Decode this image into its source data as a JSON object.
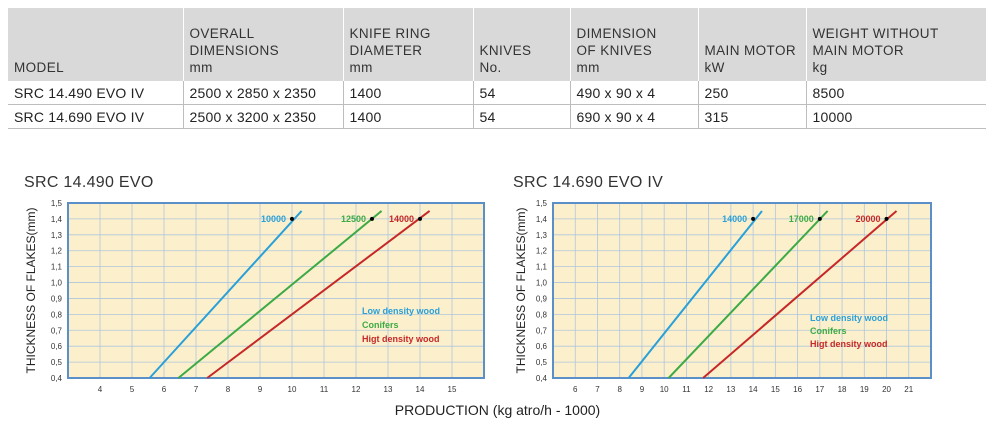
{
  "table": {
    "headers": [
      "MODEL",
      "OVERALL\nDIMENSIONS\nmm",
      "KNIFE RING\nDIAMETER\nmm",
      "KNIVES\nNo.",
      "DIMENSION\nOF KNIVES\nmm",
      "MAIN MOTOR\nkW",
      "WEIGHT WITHOUT\nMAIN MOTOR\nkg"
    ],
    "rows": [
      [
        "SRC 14.490 EVO IV",
        "2500 x 2850 x 2350",
        "1400",
        "54",
        "490 x 90 x 4",
        "250",
        "8500"
      ],
      [
        "SRC 14.690 EVO IV",
        "2500 x 3200 x 2350",
        "1400",
        "54",
        "690 x 90 x 4",
        "315",
        "10000"
      ]
    ]
  },
  "production_label": "PRODUCTION (kg atro/h - 1000)",
  "colors": {
    "plot_bg": "#fcf0cc",
    "frame": "#5b8fc7",
    "grid": "#aec6dc",
    "low_density": "#2aa0d8",
    "conifers": "#3daa46",
    "high_density": "#c62828"
  },
  "chart_data": [
    {
      "type": "line",
      "title": "SRC 14.490 EVO",
      "ylabel": "THICKNESS OF FLAKES(mm)",
      "xlabel": "PRODUCTION (kg atro/h - 1000)",
      "xlim": [
        3,
        16
      ],
      "ylim": [
        0.4,
        1.5
      ],
      "xticks": [
        "4",
        "5",
        "6",
        "7",
        "8",
        "9",
        "10",
        "11",
        "12",
        "13",
        "14",
        "15"
      ],
      "yticks": [
        "0,4",
        "0,5",
        "0,6",
        "0,7",
        "0,8",
        "0,9",
        "1,0",
        "1,1",
        "1,2",
        "1,3",
        "1,4",
        "1,5"
      ],
      "grid": true,
      "legend": [
        "Low density wood",
        "Conifers",
        "Higt density wood"
      ],
      "legend_position": "bottom-right",
      "series": [
        {
          "name": "Low density wood",
          "color_key": "low_density",
          "x": [
            5.55,
            10.3
          ],
          "y": [
            0.4,
            1.45
          ],
          "point": [
            10,
            1.4
          ],
          "point_label": "10000"
        },
        {
          "name": "Conifers",
          "color_key": "conifers",
          "x": [
            6.45,
            12.8
          ],
          "y": [
            0.4,
            1.45
          ],
          "point": [
            12.5,
            1.4
          ],
          "point_label": "12500"
        },
        {
          "name": "Higt density wood",
          "color_key": "high_density",
          "x": [
            7.35,
            14.3
          ],
          "y": [
            0.4,
            1.45
          ],
          "point": [
            14,
            1.4
          ],
          "point_label": "14000"
        }
      ]
    },
    {
      "type": "line",
      "title": "SRC 14.690 EVO IV",
      "ylabel": "THICKNESS OF FLAKES(mm)",
      "xlabel": "PRODUCTION (kg atro/h - 1000)",
      "xlim": [
        5,
        22
      ],
      "ylim": [
        0.4,
        1.5
      ],
      "xticks": [
        "6",
        "7",
        "8",
        "9",
        "10",
        "11",
        "12",
        "13",
        "14",
        "15",
        "16",
        "17",
        "18",
        "19",
        "20",
        "21"
      ],
      "yticks": [
        "0,4",
        "0,5",
        "0,6",
        "0,7",
        "0,8",
        "0,9",
        "1,0",
        "1,1",
        "1,2",
        "1,3",
        "1,4",
        "1,5"
      ],
      "grid": true,
      "legend": [
        "Low density wood",
        "Conifers",
        "Higt density wood"
      ],
      "legend_position": "bottom-right",
      "series": [
        {
          "name": "Low density wood",
          "color_key": "low_density",
          "x": [
            8.4,
            14.4
          ],
          "y": [
            0.4,
            1.45
          ],
          "point": [
            14,
            1.4
          ],
          "point_label": "14000"
        },
        {
          "name": "Conifers",
          "color_key": "conifers",
          "x": [
            10.2,
            17.35
          ],
          "y": [
            0.4,
            1.45
          ],
          "point": [
            17,
            1.4
          ],
          "point_label": "17000"
        },
        {
          "name": "Higt density wood",
          "color_key": "high_density",
          "x": [
            11.75,
            20.45
          ],
          "y": [
            0.4,
            1.45
          ],
          "point": [
            20,
            1.4
          ],
          "point_label": "20000"
        }
      ]
    }
  ]
}
